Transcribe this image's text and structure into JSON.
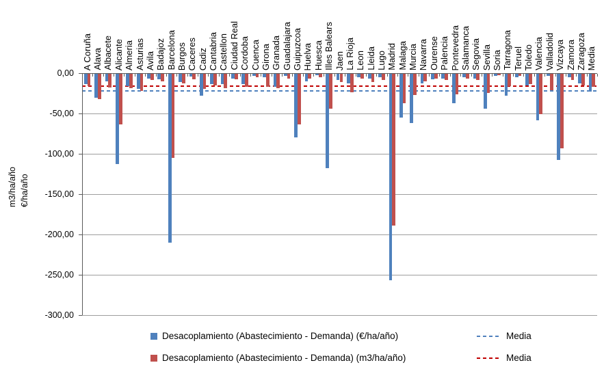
{
  "chart_data": {
    "type": "bar",
    "title": "",
    "ylabel_lines": [
      "m3/ha/año",
      "€/ha/año"
    ],
    "grid": true,
    "legend_position": "bottom",
    "y_axis": {
      "min": -300,
      "max": 0,
      "step": 50,
      "tick_labels": [
        "0,00",
        "-50,00",
        "-100,00",
        "-150,00",
        "-200,00",
        "-250,00",
        "-300,00"
      ]
    },
    "categories": [
      "A Coruña",
      "Alava",
      "Albacete",
      "Alicante",
      "Almeria",
      "Asturias",
      "Avila",
      "Badajoz",
      "Barcelona",
      "Burgos",
      "Caceres",
      "Cadiz",
      "Cantabria",
      "Castellon",
      "Ciudad Real",
      "Cordoba",
      "Cuenca",
      "Girona",
      "Granada",
      "Guadalajara",
      "Guipuzcoa",
      "Huelva",
      "Huesca",
      "Illes Balears",
      "Jaen",
      "La Rioja",
      "Leon",
      "Lleida",
      "Lugo",
      "Madrid",
      "Malaga",
      "Murcia",
      "Navarra",
      "Ourense",
      "Palencia",
      "Pontevedra",
      "Salamanca",
      "Segovia",
      "Sevilla",
      "Soria",
      "Tarragona",
      "Teruel",
      "Toledo",
      "Valencia",
      "Valladolid",
      "Vizcaya",
      "Zamora",
      "Zaragoza",
      "Media"
    ],
    "series": [
      {
        "name": "Desacoplamiento (Abastecimiento - Demanda) (€/ha/año)",
        "color": "#4F81BD",
        "values": [
          -12.5,
          -30,
          -9.5,
          -112,
          -15.5,
          -19,
          -6,
          -7,
          -209,
          -10,
          -3.5,
          -27,
          -12.5,
          -12.5,
          -5.5,
          -12.5,
          -2.5,
          -4,
          -16,
          -2.5,
          -79,
          -9,
          -2,
          -117,
          -8,
          -12,
          -4.5,
          -5.5,
          -4,
          -256,
          -54,
          -61,
          -11.5,
          -7,
          -6,
          -36,
          -4,
          -6,
          -43,
          -2.5,
          -27,
          -4,
          -14.5,
          -58,
          -2.5,
          -107,
          -4.5,
          -12,
          -22.3
        ]
      },
      {
        "name": "Desacoplamiento (Abastecimiento - Demanda)  (m3/ha/año)",
        "color": "#C0504D",
        "values": [
          -15.5,
          -31.5,
          -17,
          -63,
          -17.5,
          -21,
          -8,
          -9,
          -104,
          -12,
          -7,
          -19,
          -14,
          -17.5,
          -7,
          -16,
          -4.5,
          -16,
          -18,
          -5.5,
          -63,
          -6,
          -4,
          -43,
          -10,
          -23,
          -6,
          -10,
          -8,
          -188,
          -36,
          -26,
          -9.5,
          -5.5,
          -7.5,
          -25,
          -5.5,
          -7.5,
          -24,
          -2,
          -15,
          -2.5,
          -13,
          -50,
          -20,
          -92,
          -8,
          -14,
          -15.8
        ]
      }
    ],
    "media_lines": [
      {
        "name": "Media",
        "series": "€/ha/año",
        "color": "#4F81BD",
        "value": -22.3,
        "style": "dashed"
      },
      {
        "name": "Media",
        "series": "m3/ha/año",
        "color": "#C00000",
        "value": -15.8,
        "style": "dashed"
      }
    ],
    "legend": [
      {
        "swatch": "square",
        "color": "#4F81BD",
        "label": "Desacoplamiento (Abastecimiento - Demanda) (€/ha/año)"
      },
      {
        "swatch": "dash",
        "color": "#4F81BD",
        "label": "Media"
      },
      {
        "swatch": "square",
        "color": "#C0504D",
        "label": "Desacoplamiento (Abastecimiento - Demanda)  (m3/ha/año)"
      },
      {
        "swatch": "dash",
        "color": "#C00000",
        "label": "Media"
      }
    ]
  }
}
